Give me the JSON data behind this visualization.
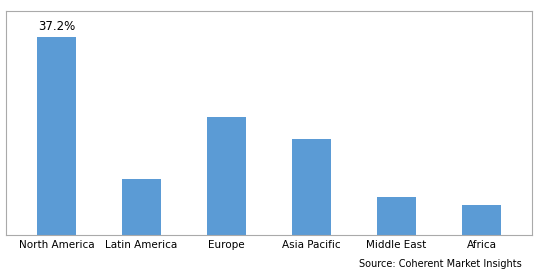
{
  "categories": [
    "North America",
    "Latin America",
    "Europe",
    "Asia Pacific",
    "Middle East",
    "Africa"
  ],
  "values": [
    37.2,
    10.5,
    22.0,
    18.0,
    7.0,
    5.5
  ],
  "bar_color": "#5B9BD5",
  "annotation_label": "37.2%",
  "annotation_index": 0,
  "ylim": [
    0,
    42
  ],
  "source_text": "Source: Coherent Market Insights",
  "background_color": "#FFFFFF",
  "grid_color": "#CCCCCC",
  "border_color": "#AAAAAA",
  "yticks": [
    0,
    5,
    10,
    15,
    20,
    25,
    30,
    35,
    40
  ]
}
